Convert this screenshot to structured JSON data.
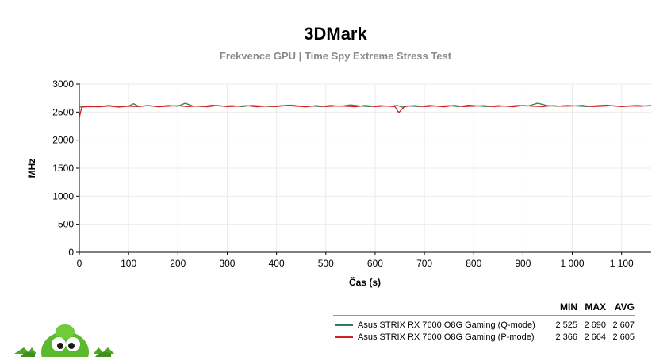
{
  "chart_data": {
    "type": "line",
    "title": "3DMark",
    "subtitle": "Frekvence GPU | Time Spy Extreme Stress Test",
    "xlabel": "Čas (s)",
    "ylabel": "MHz",
    "xlim": [
      0,
      1160
    ],
    "ylim": [
      0,
      3000
    ],
    "x_ticks": [
      0,
      100,
      200,
      300,
      400,
      500,
      600,
      700,
      800,
      900,
      1000,
      1100
    ],
    "x_tick_labels": [
      "0",
      "100",
      "200",
      "300",
      "400",
      "500",
      "600",
      "700",
      "800",
      "900",
      "1 000",
      "1 100"
    ],
    "y_ticks": [
      0,
      500,
      1000,
      1500,
      2000,
      2500,
      3000
    ],
    "y_tick_labels": [
      "0",
      "500",
      "1000",
      "1500",
      "2000",
      "2500",
      "3000"
    ],
    "grid": true,
    "legend_position": "bottom-right",
    "series": [
      {
        "name": "Asus STRIX RX 7600 O8G Gaming (Q-mode)",
        "color": "#2e7d5b",
        "min": "2 525",
        "max": "2 690",
        "avg": "2 607",
        "x": [
          0,
          20,
          40,
          60,
          80,
          100,
          110,
          120,
          140,
          160,
          180,
          200,
          215,
          230,
          250,
          270,
          290,
          310,
          330,
          350,
          370,
          390,
          410,
          430,
          450,
          470,
          490,
          510,
          530,
          550,
          570,
          590,
          610,
          630,
          645,
          655,
          670,
          690,
          710,
          730,
          750,
          770,
          790,
          810,
          830,
          850,
          870,
          890,
          910,
          930,
          950,
          970,
          990,
          1010,
          1030,
          1050,
          1070,
          1090,
          1110,
          1130,
          1150,
          1160
        ],
        "y": [
          2590,
          2610,
          2600,
          2620,
          2595,
          2610,
          2650,
          2605,
          2615,
          2600,
          2620,
          2605,
          2660,
          2610,
          2600,
          2625,
          2605,
          2615,
          2600,
          2620,
          2610,
          2600,
          2615,
          2625,
          2605,
          2610,
          2600,
          2620,
          2605,
          2630,
          2610,
          2600,
          2615,
          2605,
          2620,
          2590,
          2610,
          2600,
          2620,
          2605,
          2615,
          2600,
          2625,
          2610,
          2600,
          2615,
          2605,
          2620,
          2610,
          2660,
          2615,
          2605,
          2620,
          2610,
          2600,
          2615,
          2625,
          2605,
          2610,
          2620,
          2610,
          2615
        ]
      },
      {
        "name": "Asus STRIX RX 7600 O8G Gaming (P-mode)",
        "color": "#d32020",
        "min": "2 366",
        "max": "2 664",
        "avg": "2 605",
        "x": [
          0,
          5,
          20,
          40,
          60,
          80,
          100,
          120,
          140,
          160,
          180,
          200,
          220,
          240,
          260,
          280,
          300,
          320,
          340,
          360,
          380,
          400,
          420,
          440,
          460,
          480,
          500,
          520,
          540,
          560,
          580,
          600,
          620,
          640,
          648,
          660,
          680,
          700,
          720,
          740,
          760,
          780,
          800,
          820,
          840,
          860,
          880,
          900,
          920,
          940,
          960,
          980,
          1000,
          1020,
          1040,
          1060,
          1080,
          1100,
          1120,
          1140,
          1160
        ],
        "y": [
          2400,
          2590,
          2600,
          2595,
          2610,
          2590,
          2605,
          2600,
          2620,
          2595,
          2605,
          2615,
          2600,
          2610,
          2595,
          2620,
          2600,
          2605,
          2615,
          2595,
          2610,
          2600,
          2620,
          2605,
          2595,
          2615,
          2600,
          2610,
          2605,
          2595,
          2620,
          2600,
          2610,
          2600,
          2490,
          2605,
          2615,
          2600,
          2610,
          2595,
          2620,
          2600,
          2605,
          2615,
          2600,
          2610,
          2595,
          2620,
          2605,
          2600,
          2615,
          2605,
          2610,
          2620,
          2600,
          2605,
          2615,
          2600,
          2610,
          2605,
          2620
        ]
      }
    ],
    "legend_headers": {
      "min": "MIN",
      "max": "MAX",
      "avg": "AVG"
    }
  },
  "mascot": {
    "icon": "green-alien-mascot-icon"
  }
}
